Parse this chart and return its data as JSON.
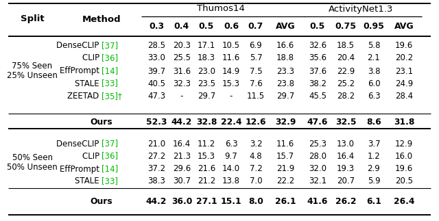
{
  "title_thumos": "Thumos14",
  "title_activitynet": "ActivityNet1.3",
  "ref_color": "#00bb00",
  "bg_color": "#ffffff",
  "split1_label_top": "75% Seen",
  "split1_label_bot": "25% Unseen",
  "split2_label_top": "50% Seen",
  "split2_label_bot": "50% Unseen",
  "rows_split1": [
    {
      "method": "DenseCLIP",
      "ref": "37",
      "dagger": false,
      "data": [
        "28.5",
        "20.3",
        "17.1",
        "10.5",
        "6.9",
        "16.6",
        "32.6",
        "18.5",
        "5.8",
        "19.6"
      ]
    },
    {
      "method": "CLIP",
      "ref": "36",
      "dagger": false,
      "data": [
        "33.0",
        "25.5",
        "18.3",
        "11.6",
        "5.7",
        "18.8",
        "35.6",
        "20.4",
        "2.1",
        "20.2"
      ]
    },
    {
      "method": "EffPrompt",
      "ref": "14",
      "dagger": false,
      "data": [
        "39.7",
        "31.6",
        "23.0",
        "14.9",
        "7.5",
        "23.3",
        "37.6",
        "22.9",
        "3.8",
        "23.1"
      ]
    },
    {
      "method": "STALE",
      "ref": "33",
      "dagger": false,
      "data": [
        "40.5",
        "32.3",
        "23.5",
        "15.3",
        "7.6",
        "23.8",
        "38.2",
        "25.2",
        "6.0",
        "24.9"
      ]
    },
    {
      "method": "ZEETAD",
      "ref": "35",
      "dagger": true,
      "data": [
        "47.3",
        "-",
        "29.7",
        "-",
        "11.5",
        "29.7",
        "45.5",
        "28.2",
        "6.3",
        "28.4"
      ]
    }
  ],
  "ours_split1": [
    "52.3",
    "44.2",
    "32.8",
    "22.4",
    "12.6",
    "32.9",
    "47.6",
    "32.5",
    "8.6",
    "31.8"
  ],
  "rows_split2": [
    {
      "method": "DenseCLIP",
      "ref": "37",
      "dagger": false,
      "data": [
        "21.0",
        "16.4",
        "11.2",
        "6.3",
        "3.2",
        "11.6",
        "25.3",
        "13.0",
        "3.7",
        "12.9"
      ]
    },
    {
      "method": "CLIP",
      "ref": "36",
      "dagger": false,
      "data": [
        "27.2",
        "21.3",
        "15.3",
        "9.7",
        "4.8",
        "15.7",
        "28.0",
        "16.4",
        "1.2",
        "16.0"
      ]
    },
    {
      "method": "EffPrompt",
      "ref": "14",
      "dagger": false,
      "data": [
        "37.2",
        "29.6",
        "21.6",
        "14.0",
        "7.2",
        "21.9",
        "32.0",
        "19.3",
        "2.9",
        "19.6"
      ]
    },
    {
      "method": "STALE",
      "ref": "33",
      "dagger": false,
      "data": [
        "38.3",
        "30.7",
        "21.2",
        "13.8",
        "7.0",
        "22.2",
        "32.1",
        "20.7",
        "5.9",
        "20.5"
      ]
    }
  ],
  "ours_split2": [
    "44.2",
    "36.0",
    "27.1",
    "15.1",
    "8.0",
    "26.1",
    "41.6",
    "26.2",
    "6.1",
    "26.4"
  ],
  "sub_headers_t": [
    "0.3",
    "0.4",
    "0.5",
    "0.6",
    "0.7",
    "AVG"
  ],
  "sub_headers_a": [
    "0.5",
    "0.75",
    "0.95",
    "AVG"
  ]
}
